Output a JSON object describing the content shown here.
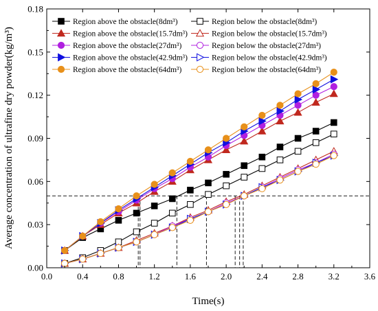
{
  "chart_data": {
    "type": "line",
    "xlabel": "Time(s)",
    "ylabel": "Average concentration of ultrafine dry powder(kg/m³)",
    "xlim": [
      0.0,
      3.6
    ],
    "ylim": [
      0.0,
      0.18
    ],
    "xticks": [
      "0.0",
      "0.4",
      "0.8",
      "1.2",
      "1.6",
      "2.0",
      "2.4",
      "2.8",
      "3.2",
      "3.6"
    ],
    "yticks": [
      "0.00",
      "0.03",
      "0.06",
      "0.09",
      "0.12",
      "0.15",
      "0.18"
    ],
    "grid": false,
    "legend_position": "top-left",
    "x": [
      0.2,
      0.4,
      0.6,
      0.8,
      1.0,
      1.2,
      1.4,
      1.6,
      1.8,
      2.0,
      2.2,
      2.4,
      2.6,
      2.8,
      3.0,
      3.2
    ],
    "threshold": 0.05,
    "crossing_times": [
      1.02,
      1.04,
      1.45,
      1.78,
      2.1,
      2.15,
      2.19
    ],
    "series": [
      {
        "name": "Region above the obstacle(8dm³)",
        "color": "#000000",
        "marker": "square",
        "filled": true,
        "values": [
          0.012,
          0.021,
          0.027,
          0.033,
          0.038,
          0.043,
          0.048,
          0.054,
          0.059,
          0.065,
          0.071,
          0.077,
          0.084,
          0.09,
          0.095,
          0.101
        ]
      },
      {
        "name": "Region below the obstacle(8dm³)",
        "color": "#000000",
        "marker": "square",
        "filled": false,
        "values": [
          0.003,
          0.007,
          0.012,
          0.018,
          0.025,
          0.031,
          0.038,
          0.044,
          0.051,
          0.057,
          0.063,
          0.069,
          0.075,
          0.081,
          0.087,
          0.093
        ]
      },
      {
        "name": "Region above the obstacle(15.7dm³)",
        "color": "#c0281e",
        "marker": "triangle",
        "filled": true,
        "values": [
          0.012,
          0.022,
          0.03,
          0.038,
          0.045,
          0.053,
          0.06,
          0.068,
          0.075,
          0.082,
          0.088,
          0.095,
          0.102,
          0.108,
          0.115,
          0.121
        ]
      },
      {
        "name": "Region below the obstacle(15.7dm³)",
        "color": "#c0281e",
        "marker": "triangle",
        "filled": false,
        "values": [
          0.003,
          0.006,
          0.01,
          0.014,
          0.019,
          0.024,
          0.029,
          0.035,
          0.04,
          0.046,
          0.051,
          0.057,
          0.063,
          0.069,
          0.075,
          0.081
        ]
      },
      {
        "name": "Region above the obstacle(27dm³)",
        "color": "#b020e0",
        "marker": "circle",
        "filled": true,
        "values": [
          0.012,
          0.022,
          0.031,
          0.039,
          0.047,
          0.055,
          0.062,
          0.07,
          0.077,
          0.085,
          0.092,
          0.099,
          0.106,
          0.113,
          0.12,
          0.126
        ]
      },
      {
        "name": "Region below the obstacle(27dm³)",
        "color": "#b020e0",
        "marker": "circle",
        "filled": false,
        "values": [
          0.003,
          0.006,
          0.01,
          0.014,
          0.018,
          0.023,
          0.029,
          0.034,
          0.039,
          0.045,
          0.05,
          0.056,
          0.062,
          0.068,
          0.073,
          0.079
        ]
      },
      {
        "name": "Region above the obstacle(42.9dm³)",
        "color": "#1010e0",
        "marker": "triangle-right",
        "filled": true,
        "values": [
          0.012,
          0.022,
          0.031,
          0.04,
          0.048,
          0.056,
          0.064,
          0.072,
          0.08,
          0.087,
          0.095,
          0.102,
          0.109,
          0.117,
          0.124,
          0.131
        ]
      },
      {
        "name": "Region below the obstacle(42.9dm³)",
        "color": "#1010e0",
        "marker": "triangle-right",
        "filled": false,
        "values": [
          0.003,
          0.006,
          0.01,
          0.014,
          0.018,
          0.023,
          0.028,
          0.034,
          0.039,
          0.044,
          0.05,
          0.056,
          0.061,
          0.067,
          0.073,
          0.078
        ]
      },
      {
        "name": "Region above the obstacle(64dm³)",
        "color": "#e8901a",
        "marker": "circle",
        "filled": true,
        "values": [
          0.012,
          0.022,
          0.032,
          0.041,
          0.05,
          0.058,
          0.066,
          0.074,
          0.082,
          0.09,
          0.098,
          0.106,
          0.113,
          0.121,
          0.128,
          0.136
        ]
      },
      {
        "name": "Region below the obstacle(64dm³)",
        "color": "#e8901a",
        "marker": "circle",
        "filled": false,
        "values": [
          0.003,
          0.006,
          0.01,
          0.014,
          0.018,
          0.023,
          0.028,
          0.033,
          0.039,
          0.044,
          0.05,
          0.055,
          0.061,
          0.067,
          0.072,
          0.078
        ]
      }
    ]
  }
}
